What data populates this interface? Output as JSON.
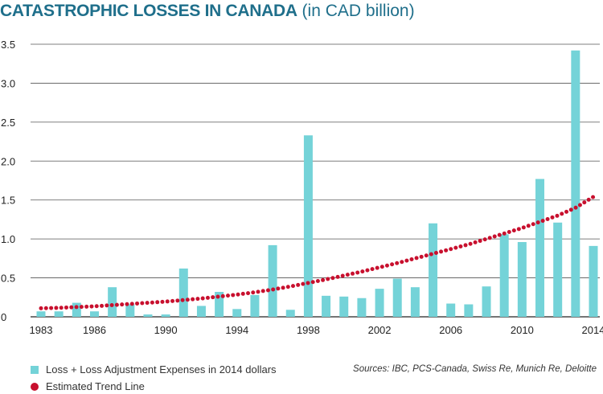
{
  "header": {
    "title": "CATASTROPHIC LOSSES IN CANADA",
    "subtitle": "(in CAD billion)"
  },
  "chart_data": {
    "type": "bar",
    "x": [
      1983,
      1984,
      1985,
      1986,
      1987,
      1988,
      1989,
      1990,
      1991,
      1992,
      1993,
      1994,
      1995,
      1996,
      1997,
      1998,
      1999,
      2000,
      2001,
      2002,
      2003,
      2004,
      2005,
      2006,
      2007,
      2008,
      2009,
      2010,
      2011,
      2012,
      2013,
      2014
    ],
    "x_tick_labels": [
      "1983",
      "1986",
      "1990",
      "1994",
      "1998",
      "2002",
      "2006",
      "2010",
      "2014"
    ],
    "x_tick_values": [
      1983,
      1986,
      1990,
      1994,
      1998,
      2002,
      2006,
      2010,
      2014
    ],
    "ylim": [
      0,
      3.5
    ],
    "y_ticks": [
      "0",
      "0.5",
      "1.0",
      "1.5",
      "2.0",
      "2.5",
      "3.0",
      "3.5"
    ],
    "grid": "horizontal",
    "series": [
      {
        "name": "Loss + Loss Adjustment Expenses in 2014 dollars",
        "style": "bar",
        "color": "#74d3d8",
        "values": [
          0.07,
          0.07,
          0.18,
          0.07,
          0.38,
          0.16,
          0.03,
          0.03,
          0.62,
          0.14,
          0.32,
          0.1,
          0.28,
          0.92,
          0.09,
          2.33,
          0.27,
          0.26,
          0.24,
          0.36,
          0.49,
          0.38,
          1.2,
          0.17,
          0.16,
          0.39,
          1.06,
          0.96,
          1.77,
          1.21,
          3.42,
          0.91
        ]
      },
      {
        "name": "Estimated Trend Line",
        "style": "dotted-line",
        "color": "#c8102e",
        "values": [
          0.11,
          0.115,
          0.125,
          0.135,
          0.15,
          0.165,
          0.18,
          0.195,
          0.215,
          0.235,
          0.26,
          0.285,
          0.315,
          0.35,
          0.39,
          0.435,
          0.48,
          0.53,
          0.58,
          0.635,
          0.69,
          0.75,
          0.81,
          0.87,
          0.93,
          1.0,
          1.07,
          1.14,
          1.22,
          1.3,
          1.4,
          1.54
        ]
      }
    ],
    "legend_position": "bottom-left",
    "source_note": "Sources: IBC, PCS-Canada, Swiss Re, Munich Re, Deloitte"
  }
}
